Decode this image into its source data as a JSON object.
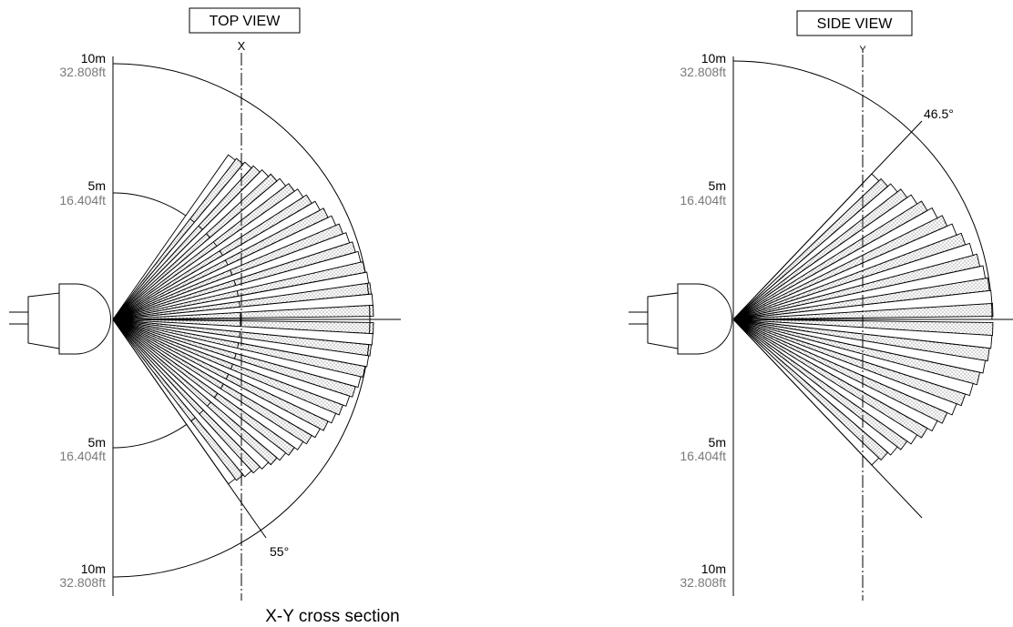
{
  "top_view": {
    "title": "TOP VIEW",
    "axis_letter": "X",
    "angle_label": "55°",
    "half_angle_deg": 55,
    "labels": [
      {
        "m": "10m",
        "ft": "32.808ft"
      },
      {
        "m": "5m",
        "ft": "16.404ft"
      },
      {
        "m": "5m",
        "ft": "16.404ft"
      },
      {
        "m": "10m",
        "ft": "32.808ft"
      }
    ]
  },
  "side_view": {
    "title": "SIDE VIEW",
    "axis_letter": "Y",
    "angle_label": "46.5°",
    "half_angle_deg": 46.5,
    "labels": [
      {
        "m": "10m",
        "ft": "32.808ft"
      },
      {
        "m": "5m",
        "ft": "16.404ft"
      },
      {
        "m": "5m",
        "ft": "16.404ft"
      },
      {
        "m": "10m",
        "ft": "32.808ft"
      }
    ]
  },
  "caption": "X-Y cross section"
}
